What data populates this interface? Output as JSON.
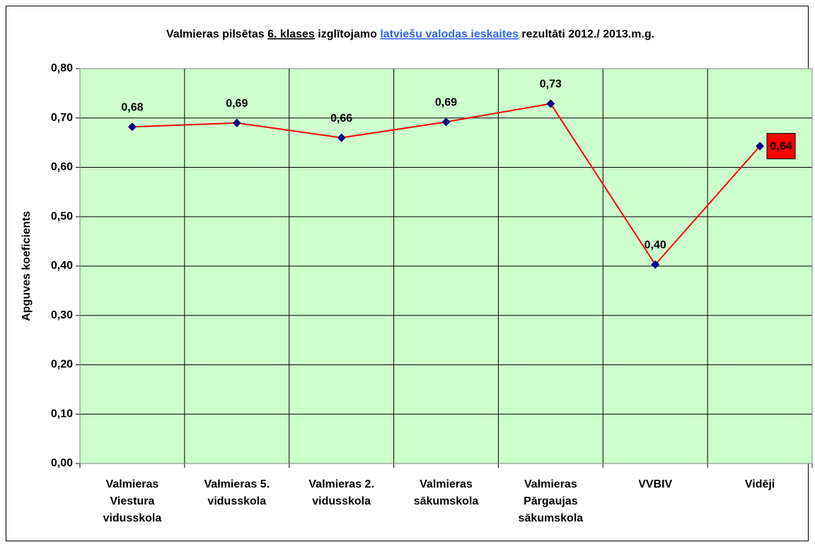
{
  "chart_data": {
    "type": "line",
    "title": [
      {
        "text": "Valmieras pilsētas ",
        "style": "plain"
      },
      {
        "text": "6. klases",
        "style": "underline"
      },
      {
        "text": " izglītojamo ",
        "style": "plain"
      },
      {
        "text": "latviešu valodas ieskaites",
        "style": "link"
      },
      {
        "text": " rezultāti 2012./ 2013.m.g.",
        "style": "plain"
      }
    ],
    "y_label": "Apguves koeficients",
    "categories": [
      [
        "Valmieras",
        "Viestura",
        "vidusskola"
      ],
      [
        "Valmieras 5.",
        "vidusskola"
      ],
      [
        "Valmieras 2.",
        "vidusskola"
      ],
      [
        "Valmieras",
        "sākumskola"
      ],
      [
        "Valmieras",
        "Pārgaujas",
        "sākumskola"
      ],
      [
        "VVBIV"
      ],
      [
        "Vidēji"
      ]
    ],
    "values": [
      0.682,
      0.69,
      0.66,
      0.692,
      0.729,
      0.403,
      0.643
    ],
    "value_labels": [
      "0,68",
      "0,69",
      "0,66",
      "0,69",
      "0,73",
      "0,40",
      "0,64"
    ],
    "color": "#ff0000",
    "marker_color": "#000080",
    "background": "#ccffcc",
    "highlight_index": 6,
    "highlight_color": "#ff0000",
    "ylim": [
      0,
      0.8
    ],
    "yticks": [
      {
        "value": 0,
        "label": "0,00"
      },
      {
        "value": 0.1,
        "label": "0,10"
      },
      {
        "value": 0.2,
        "label": "0,20"
      },
      {
        "value": 0.3,
        "label": "0,30"
      },
      {
        "value": 0.4,
        "label": "0,40"
      },
      {
        "value": 0.5,
        "label": "0,50"
      },
      {
        "value": 0.6,
        "label": "0,60"
      },
      {
        "value": 0.7,
        "label": "0,70"
      },
      {
        "value": 0.8,
        "label": "0,80"
      }
    ],
    "grid": true
  }
}
